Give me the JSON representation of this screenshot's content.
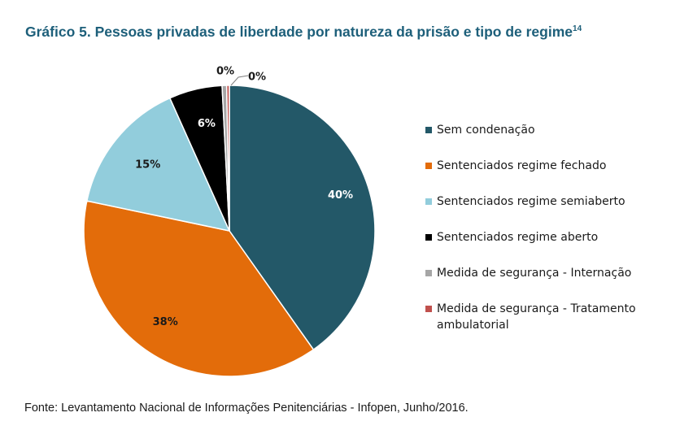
{
  "title": {
    "text": "Gráfico 5. Pessoas privadas de liberdade por natureza da prisão e tipo de regime",
    "footnote": "14"
  },
  "source": "Fonte: Levantamento Nacional de Informações Penitenciárias - Infopen, Junho/2016.",
  "chart_data": {
    "type": "pie",
    "title": "Gráfico 5. Pessoas privadas de liberdade por natureza da prisão e tipo de regime",
    "categories": [
      "Sem condenação",
      "Sentenciados regime fechado",
      "Sentenciados regime semiaberto",
      "Sentenciados regime aberto",
      "Medida de segurança - Internação",
      "Medida de segurança - Tratamento ambulatorial"
    ],
    "values": [
      40.2,
      38.1,
      15.0,
      5.9,
      0.5,
      0.3
    ],
    "data_labels": [
      "40%",
      "38%",
      "15%",
      "6%",
      "0%",
      "0%"
    ],
    "colors": [
      "#235868",
      "#e36c0a",
      "#92cddc",
      "#000000",
      "#a6a6a6",
      "#c0504d"
    ],
    "legend_position": "right"
  }
}
